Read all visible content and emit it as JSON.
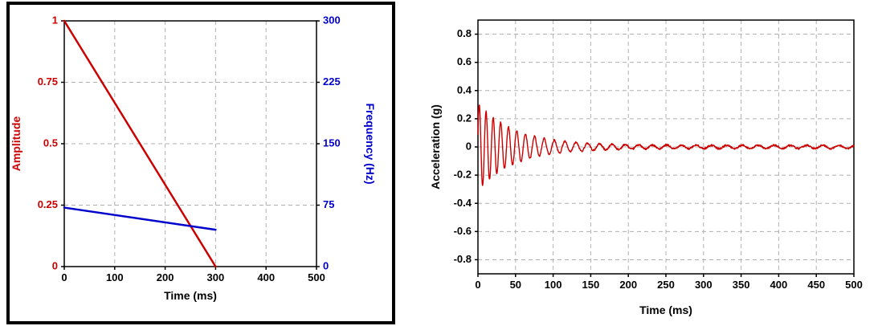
{
  "figure": {
    "background": "#ffffff",
    "left_panel_border_color": "#000000"
  },
  "chart_data": [
    {
      "type": "line",
      "title": "",
      "xlabel": "Time (ms)",
      "xlim": [
        0,
        500
      ],
      "xticks": [
        0,
        100,
        200,
        300,
        400,
        500
      ],
      "grid": true,
      "grid_color": "#b0b0b0",
      "left_axis": {
        "label": "Amplitude",
        "color": "#cc0000",
        "lim": [
          0,
          1
        ],
        "ticks": [
          0,
          0.25,
          0.5,
          0.75,
          1
        ]
      },
      "right_axis": {
        "label": "Frequency (Hz)",
        "color": "#0000cc",
        "lim": [
          0,
          300
        ],
        "ticks": [
          0,
          75,
          150,
          225,
          300
        ]
      },
      "series": [
        {
          "name": "amplitude-envelope",
          "axis": "left",
          "color": "#cc0000",
          "width": 2.5,
          "points": [
            [
              0,
              1
            ],
            [
              300,
              0
            ]
          ]
        },
        {
          "name": "frequency-sweep",
          "axis": "right",
          "color": "#0000cc",
          "width": 2.5,
          "points": [
            [
              0,
              72
            ],
            [
              300,
              45
            ]
          ]
        }
      ]
    },
    {
      "type": "line",
      "title": "",
      "xlabel": "Time (ms)",
      "ylabel": "Acceleration (g)",
      "xlim": [
        0,
        500
      ],
      "xticks": [
        0,
        50,
        100,
        150,
        200,
        250,
        300,
        350,
        400,
        450,
        500
      ],
      "ylim": [
        -0.9,
        0.9
      ],
      "yticks": [
        -0.8,
        -0.6,
        -0.4,
        -0.2,
        0,
        0.2,
        0.4,
        0.6,
        0.8
      ],
      "grid": true,
      "grid_color": "#b0b0b0",
      "series": [
        {
          "name": "acceleration-response",
          "color": "#cc0000",
          "width": 1.4,
          "signal": {
            "t_start": 0,
            "t_end": 500,
            "dt": 0.4,
            "amp_initial": 0.3,
            "amp_tau_ms": 48,
            "amp_floor": 0.012,
            "freq_start_hz": 115,
            "freq_end_hz": 45,
            "freq_tau_ms": 110,
            "noise_amp": 0.006,
            "seed": 42
          }
        }
      ]
    }
  ]
}
